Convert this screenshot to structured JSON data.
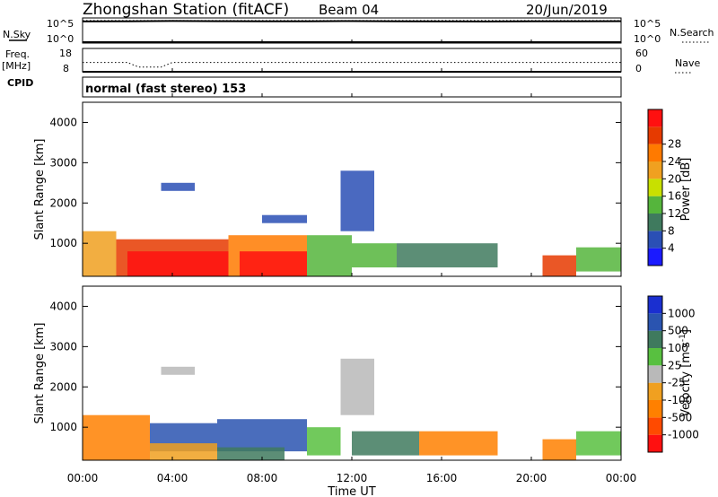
{
  "header": {
    "title": "Zhongshan Station (fitACF)",
    "beam": "Beam 04",
    "date": "20/Jun/2019"
  },
  "panel_labels": {
    "nsky": "N.Sky",
    "freq": "Freq.",
    "mhz": "[MHz]",
    "cpid": "CPID",
    "nsearch": "N.Search",
    "nave": "Nave",
    "cpid_text": "normal (fast stereo) 153"
  },
  "noise_axis": {
    "left_top": "10^5",
    "left_bottom": "10^0",
    "right_top": "10^5",
    "right_bottom": "10^0"
  },
  "freq_axis": {
    "left_top": "18",
    "left_bottom": "8",
    "right_top": "60",
    "right_bottom": "0"
  },
  "x_axis": {
    "ticks": [
      "00:00",
      "04:00",
      "08:00",
      "12:00",
      "16:00",
      "20:00",
      "00:00"
    ],
    "label": "Time UT"
  },
  "y_axis": {
    "label": "Slant Range [km]",
    "ticks": [
      "1000",
      "2000",
      "3000",
      "4000"
    ]
  },
  "power_colorbar": {
    "label": "Power [dB]",
    "ticks": [
      "4",
      "8",
      "12",
      "16",
      "20",
      "24",
      "28"
    ],
    "colors": [
      "#1a1aff",
      "#2a4fb5",
      "#3f7a5e",
      "#55b53c",
      "#c8e000",
      "#f0a020",
      "#ff7a00",
      "#e63a00",
      "#ff1010"
    ]
  },
  "velocity_colorbar": {
    "label": "Velocity [m s^-1]",
    "ticks": [
      "1000",
      "500",
      "100",
      "25",
      "-25",
      "-100",
      "-500",
      "-1000"
    ],
    "colors": [
      "#1a2fd0",
      "#2a54b0",
      "#3f7a5e",
      "#58c040",
      "#b9b9b9",
      "#f0a020",
      "#ff8000",
      "#ff4a00",
      "#ff1010"
    ]
  },
  "chart_data": [
    {
      "type": "line",
      "title": "",
      "xlabel": "Time UT",
      "ylabel": "N.Sky",
      "x_range_hours": [
        0,
        24
      ],
      "y_scale": "log",
      "ylim": [
        1,
        100000
      ],
      "series": [
        {
          "name": "N.Sky",
          "x": [
            0,
            2,
            4,
            6,
            8,
            10,
            12,
            14,
            16,
            18,
            20,
            22,
            24
          ],
          "values": [
            20000,
            22000,
            25000,
            23000,
            21000,
            22000,
            24000,
            21000,
            20000,
            19000,
            21000,
            22000,
            23000
          ]
        },
        {
          "name": "N.Search",
          "x": [
            0,
            4,
            8,
            12,
            16,
            20,
            24
          ],
          "values": [
            30000,
            30000,
            30000,
            30000,
            30000,
            30000,
            30000
          ]
        }
      ]
    },
    {
      "type": "line",
      "title": "",
      "xlabel": "Time UT",
      "ylabel": "Freq. [MHz]",
      "x_range_hours": [
        0,
        24
      ],
      "ylim": [
        8,
        18
      ],
      "y2lim": [
        0,
        60
      ],
      "series": [
        {
          "name": "Freq.",
          "x": [
            0,
            2,
            2.5,
            3.5,
            4,
            8,
            12,
            16,
            20,
            24
          ],
          "values": [
            12,
            12,
            10,
            10,
            12,
            12,
            12,
            12,
            12,
            12
          ]
        },
        {
          "name": "Nave",
          "x": [
            0,
            4,
            8,
            12,
            16,
            20,
            24
          ],
          "values": [
            0,
            0,
            0,
            0,
            0,
            0,
            0
          ]
        }
      ]
    },
    {
      "type": "heatmap",
      "title": "",
      "xlabel": "Time UT",
      "ylabel": "Slant Range [km]",
      "colorbar_label": "Power [dB]",
      "x_range_hours": [
        0,
        24
      ],
      "ylim": [
        180,
        4500
      ],
      "clim": [
        0,
        30
      ],
      "series": [
        {
          "name": "Power [dB]",
          "blocks": [
            {
              "t0": 0,
              "t1": 1.5,
              "r0": 180,
              "r1": 1300,
              "level": 5
            },
            {
              "t0": 1.5,
              "t1": 6.5,
              "r0": 180,
              "r1": 1100,
              "level": 7
            },
            {
              "t0": 2,
              "t1": 6.5,
              "r0": 180,
              "r1": 800,
              "level": 8
            },
            {
              "t0": 6.5,
              "t1": 10,
              "r0": 180,
              "r1": 1200,
              "level": 6
            },
            {
              "t0": 7,
              "t1": 10,
              "r0": 180,
              "r1": 800,
              "level": 8
            },
            {
              "t0": 10,
              "t1": 12,
              "r0": 180,
              "r1": 1200,
              "level": 3
            },
            {
              "t0": 11.5,
              "t1": 13,
              "r0": 1300,
              "r1": 2800,
              "level": 1
            },
            {
              "t0": 12,
              "t1": 14,
              "r0": 400,
              "r1": 1000,
              "level": 3
            },
            {
              "t0": 14,
              "t1": 18.5,
              "r0": 400,
              "r1": 1000,
              "level": 2
            },
            {
              "t0": 20.5,
              "t1": 22,
              "r0": 180,
              "r1": 700,
              "level": 7
            },
            {
              "t0": 22,
              "t1": 24,
              "r0": 300,
              "r1": 900,
              "level": 3
            },
            {
              "t0": 3.5,
              "t1": 5,
              "r0": 2300,
              "r1": 2500,
              "level": 1
            },
            {
              "t0": 8,
              "t1": 10,
              "r0": 1500,
              "r1": 1700,
              "level": 1
            }
          ]
        }
      ]
    },
    {
      "type": "heatmap",
      "title": "",
      "xlabel": "Time UT",
      "ylabel": "Slant Range [km]",
      "colorbar_label": "Velocity [m s^-1]",
      "x_range_hours": [
        0,
        24
      ],
      "ylim": [
        180,
        4500
      ],
      "clim": [
        -1000,
        1000
      ],
      "series": [
        {
          "name": "Velocity [m s^-1]",
          "blocks": [
            {
              "t0": 0,
              "t1": 3,
              "r0": 180,
              "r1": 1300,
              "level": 6
            },
            {
              "t0": 3,
              "t1": 6,
              "r0": 400,
              "r1": 1100,
              "level": 1
            },
            {
              "t0": 3,
              "t1": 6,
              "r0": 180,
              "r1": 600,
              "level": 5
            },
            {
              "t0": 6,
              "t1": 10,
              "r0": 400,
              "r1": 1200,
              "level": 1
            },
            {
              "t0": 6,
              "t1": 9,
              "r0": 180,
              "r1": 500,
              "level": 2
            },
            {
              "t0": 10,
              "t1": 11.5,
              "r0": 300,
              "r1": 1000,
              "level": 3
            },
            {
              "t0": 11.5,
              "t1": 13,
              "r0": 1300,
              "r1": 2700,
              "level": 4
            },
            {
              "t0": 12,
              "t1": 15,
              "r0": 300,
              "r1": 900,
              "level": 2
            },
            {
              "t0": 15,
              "t1": 18.5,
              "r0": 300,
              "r1": 900,
              "level": 6
            },
            {
              "t0": 20.5,
              "t1": 22,
              "r0": 180,
              "r1": 700,
              "level": 6
            },
            {
              "t0": 22,
              "t1": 24,
              "r0": 300,
              "r1": 900,
              "level": 3
            },
            {
              "t0": 3.5,
              "t1": 5,
              "r0": 2300,
              "r1": 2500,
              "level": 4
            }
          ]
        }
      ]
    }
  ]
}
